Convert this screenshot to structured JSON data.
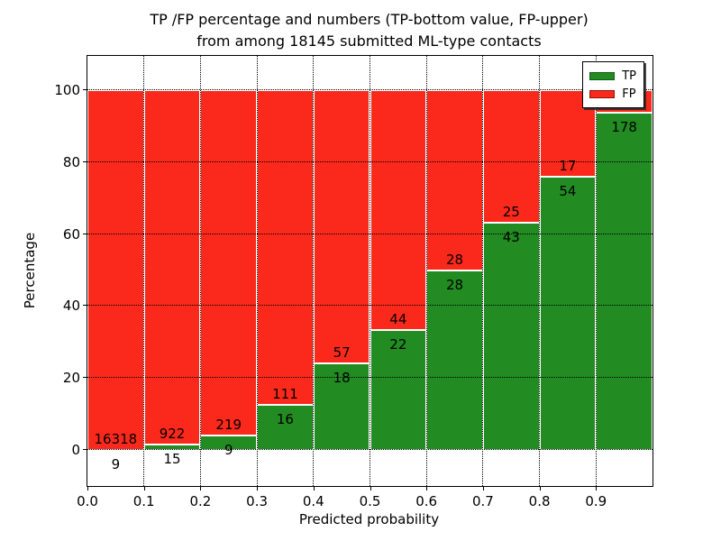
{
  "chart_data": {
    "type": "bar",
    "stacked": true,
    "percent_normalized": true,
    "title_line1": "TP /FP percentage and numbers (TP-bottom value, FP-upper)",
    "title_line2": "from among 18145 submitted ML-type contacts",
    "xlabel": "Predicted probability",
    "ylabel": "Percentage",
    "x_tick_labels": [
      "0.0",
      "0.1",
      "0.2",
      "0.3",
      "0.4",
      "0.5",
      "0.6",
      "0.7",
      "0.8",
      "0.9"
    ],
    "y_tick_values": [
      0,
      20,
      40,
      60,
      80,
      100
    ],
    "xlim": [
      0.0,
      1.0
    ],
    "ylim": [
      -10,
      110
    ],
    "grid": "dotted",
    "legend_position": "upper-right",
    "categories": [
      "0.0-0.1",
      "0.1-0.2",
      "0.2-0.3",
      "0.3-0.4",
      "0.4-0.5",
      "0.5-0.6",
      "0.6-0.7",
      "0.7-0.8",
      "0.8-0.9",
      "0.9-1.0"
    ],
    "series": [
      {
        "name": "TP",
        "color": "#228b22",
        "edge_color": "#145c14",
        "values": [
          9,
          15,
          9,
          16,
          18,
          22,
          28,
          43,
          54,
          178
        ]
      },
      {
        "name": "FP",
        "color": "#fa291b",
        "edge_color": "#8f120a",
        "values": [
          16318,
          922,
          219,
          111,
          57,
          44,
          28,
          25,
          17,
          12
        ]
      }
    ],
    "bar_value_note": "each bar height = TP count / (TP+FP count) * 100; TP count printed below boundary, FP count printed above boundary"
  }
}
